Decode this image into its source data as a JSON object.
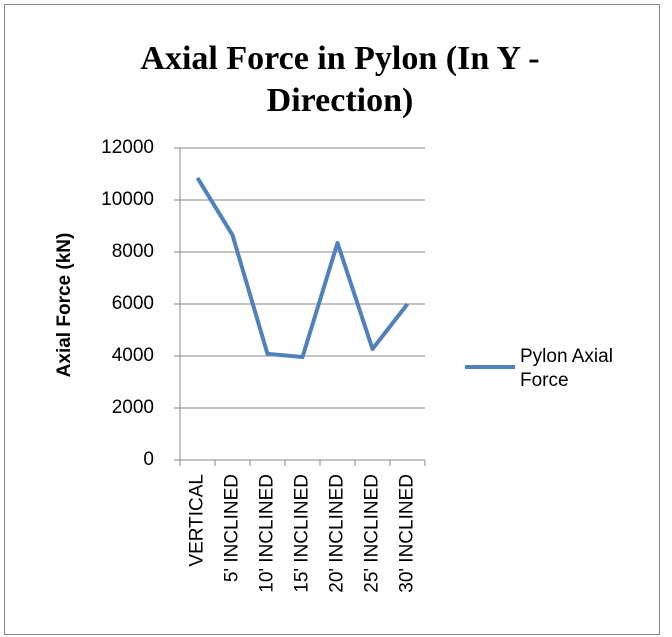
{
  "chart_data": {
    "type": "line",
    "title": "Axial Force in Pylon (In Y - Direction)",
    "y_label": "Axial Force (kN)",
    "categories": [
      "VERTICAL",
      "5' INCLINED",
      "10' INCLINED",
      "15' INCLINED",
      "20' INCLINED",
      "25' INCLINED",
      "30' INCLINED"
    ],
    "series": [
      {
        "name": "Pylon Axial Force",
        "color": "#4f81bd",
        "values": [
          10850,
          8650,
          4080,
          3960,
          8350,
          4270,
          6000
        ]
      }
    ],
    "ylim": [
      0,
      12000
    ],
    "yticks": [
      0,
      2000,
      4000,
      6000,
      8000,
      10000,
      12000
    ],
    "grid": true,
    "legend": "right"
  }
}
